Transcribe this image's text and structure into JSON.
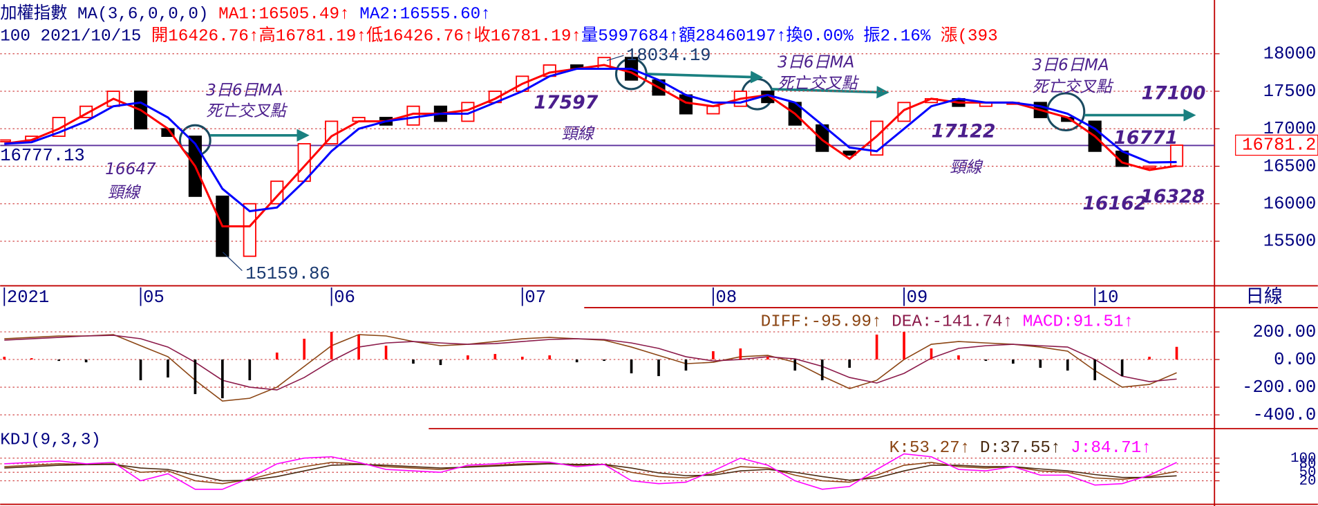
{
  "chart_data": [
    {
      "type": "price",
      "title": "加權指數",
      "subtitle": "MA(3,6,0,0,0)",
      "info": [
        {
          "text": "100 2021/10/15 ",
          "color": "#000080"
        },
        {
          "text": "開16426.76↑高16781.19↑低16426.76↑收16781.19↑",
          "color": "#ff0000"
        },
        {
          "text": "量5997684↑額28460197↑換0.00% 振2.16% ",
          "color": "#0000ff"
        },
        {
          "text": "漲(393",
          "color": "#ff0000"
        }
      ],
      "period": "日線",
      "xlim": [
        0,
        43
      ],
      "xticks": [
        {
          "value": 0,
          "label": "2021"
        },
        {
          "value": 5,
          "label": "05"
        },
        {
          "value": 12,
          "label": "06"
        },
        {
          "value": 19,
          "label": "07"
        },
        {
          "value": 26,
          "label": "08"
        },
        {
          "value": 33,
          "label": "09"
        },
        {
          "value": 40,
          "label": "10"
        }
      ],
      "ylim": [
        14906,
        18717
      ],
      "yticks": [
        15500,
        16000,
        16500,
        17000,
        17500,
        18000
      ],
      "grid": true,
      "neckline": {
        "value": 16777.13,
        "label": "16777.13",
        "color": "#5a2d9c"
      },
      "last_price": {
        "value": 16781.19,
        "label": "16781.2"
      },
      "series": [
        {
          "style": "candle",
          "up_color": "#ff0000",
          "down_color": "#000000",
          "values": [
            16850,
            16900,
            17150,
            17300,
            17500,
            17000,
            16900,
            16100,
            15300,
            16000,
            16300,
            16800,
            17100,
            17150,
            17050,
            17300,
            17100,
            17350,
            17500,
            17700,
            17850,
            17800,
            17950,
            17650,
            17450,
            17200,
            17300,
            17500,
            17350,
            17050,
            16700,
            16650,
            17100,
            17350,
            17400,
            17300,
            17350,
            17350,
            17150,
            17100,
            16700,
            16500,
            16500,
            16781.19
          ]
        },
        {
          "style": "line",
          "name": "MA1:16505.49↑",
          "color": "#ff0000",
          "values": [
            16800,
            16850,
            17000,
            17200,
            17400,
            17250,
            17000,
            16500,
            15700,
            15700,
            16100,
            16500,
            16900,
            17100,
            17100,
            17200,
            17200,
            17250,
            17400,
            17600,
            17750,
            17800,
            17850,
            17750,
            17550,
            17350,
            17300,
            17400,
            17450,
            17200,
            16850,
            16600,
            16900,
            17250,
            17400,
            17350,
            17350,
            17350,
            17250,
            17150,
            16900,
            16550,
            16450,
            16505.49
          ]
        },
        {
          "style": "line",
          "name": "MA2:16555.60↑",
          "color": "#0000ff",
          "values": [
            16800,
            16820,
            16950,
            17100,
            17300,
            17350,
            17150,
            16800,
            16200,
            15900,
            15950,
            16300,
            16700,
            17000,
            17100,
            17150,
            17200,
            17200,
            17350,
            17500,
            17700,
            17800,
            17800,
            17800,
            17650,
            17450,
            17350,
            17350,
            17450,
            17350,
            17050,
            16750,
            16700,
            17000,
            17300,
            17400,
            17350,
            17350,
            17300,
            17200,
            17000,
            16700,
            16550,
            16555.6
          ]
        }
      ],
      "annotations": [
        "16647",
        "頸線",
        "15159.86",
        "3日6日MA",
        "死亡交叉點",
        "18034.19",
        "17597",
        "頸線",
        "3日6日MA",
        "死亡交叉點",
        "17122",
        "頸線",
        "3日6日MA",
        "死亡交叉點",
        "17100",
        "16771",
        "16162",
        "16328"
      ]
    },
    {
      "type": "macd",
      "xlim": [
        0,
        43
      ],
      "ylim": [
        -500,
        375
      ],
      "yticks": [
        {
          "value": 200,
          "label": "200.00"
        },
        {
          "value": 0,
          "label": "0.00"
        },
        {
          "value": -200,
          "label": "-200.00"
        },
        {
          "value": -400,
          "label": "-400.0"
        }
      ],
      "grid": true,
      "series": [
        {
          "style": "line",
          "name": "DIFF:-95.99↑",
          "color": "#8b4513",
          "values": [
            150,
            160,
            170,
            170,
            180,
            100,
            20,
            -150,
            -300,
            -280,
            -200,
            -50,
            100,
            180,
            170,
            130,
            100,
            110,
            130,
            150,
            160,
            150,
            140,
            90,
            30,
            -30,
            -20,
            20,
            30,
            -20,
            -120,
            -210,
            -150,
            0,
            110,
            130,
            120,
            110,
            90,
            60,
            -80,
            -200,
            -180,
            -95.99
          ]
        },
        {
          "style": "line",
          "name": "DEA:-141.74↑",
          "color": "#8b1a4a",
          "values": [
            140,
            150,
            160,
            170,
            175,
            150,
            90,
            -20,
            -150,
            -200,
            -220,
            -130,
            -10,
            90,
            120,
            130,
            120,
            110,
            115,
            130,
            145,
            150,
            145,
            120,
            80,
            20,
            -10,
            0,
            20,
            5,
            -50,
            -130,
            -170,
            -100,
            10,
            80,
            100,
            110,
            100,
            90,
            0,
            -120,
            -160,
            -141.74
          ]
        },
        {
          "style": "bar",
          "name": "MACD:91.51↑",
          "color": "#ff00ff",
          "up_color": "#ff0000",
          "down_color": "#000000",
          "values": [
            20,
            10,
            -10,
            -20,
            0,
            -150,
            -130,
            -250,
            -280,
            -150,
            50,
            150,
            200,
            180,
            100,
            -30,
            -40,
            30,
            40,
            20,
            30,
            -20,
            -10,
            -100,
            -120,
            -80,
            60,
            80,
            20,
            -80,
            -150,
            -60,
            180,
            200,
            80,
            30,
            -10,
            -30,
            -60,
            -80,
            -150,
            -120,
            20,
            91.51
          ]
        }
      ]
    },
    {
      "type": "kdj",
      "title": "KDJ(9,3,3)",
      "xlim": [
        0,
        43
      ],
      "ylim": [
        -63,
        198
      ],
      "yticks": [
        100,
        80,
        50,
        20
      ],
      "grid": true,
      "series": [
        {
          "style": "line",
          "name": "K:53.27↑",
          "color": "#8b4513",
          "values": [
            70,
            75,
            80,
            78,
            80,
            50,
            55,
            20,
            10,
            25,
            50,
            70,
            85,
            80,
            70,
            65,
            60,
            70,
            75,
            80,
            82,
            75,
            78,
            50,
            35,
            30,
            45,
            70,
            65,
            40,
            20,
            15,
            40,
            75,
            85,
            70,
            65,
            70,
            55,
            50,
            30,
            25,
            35,
            53.27
          ]
        },
        {
          "style": "line",
          "name": "D:37.55↑",
          "color": "#4a2a10",
          "values": [
            65,
            70,
            75,
            77,
            78,
            65,
            60,
            40,
            20,
            22,
            35,
            55,
            75,
            78,
            75,
            70,
            65,
            68,
            72,
            76,
            80,
            78,
            78,
            65,
            48,
            38,
            40,
            55,
            60,
            50,
            35,
            22,
            30,
            55,
            75,
            75,
            70,
            70,
            62,
            55,
            42,
            32,
            32,
            37.55
          ]
        },
        {
          "style": "line",
          "name": "J:84.71↑",
          "color": "#ff00ff",
          "values": [
            80,
            85,
            90,
            80,
            85,
            20,
            45,
            -10,
            -10,
            30,
            80,
            100,
            105,
            85,
            60,
            55,
            50,
            75,
            80,
            88,
            86,
            70,
            78,
            20,
            10,
            15,
            55,
            100,
            75,
            20,
            -10,
            0,
            60,
            115,
            105,
            60,
            55,
            70,
            40,
            40,
            5,
            10,
            40,
            84.71
          ]
        }
      ]
    }
  ]
}
